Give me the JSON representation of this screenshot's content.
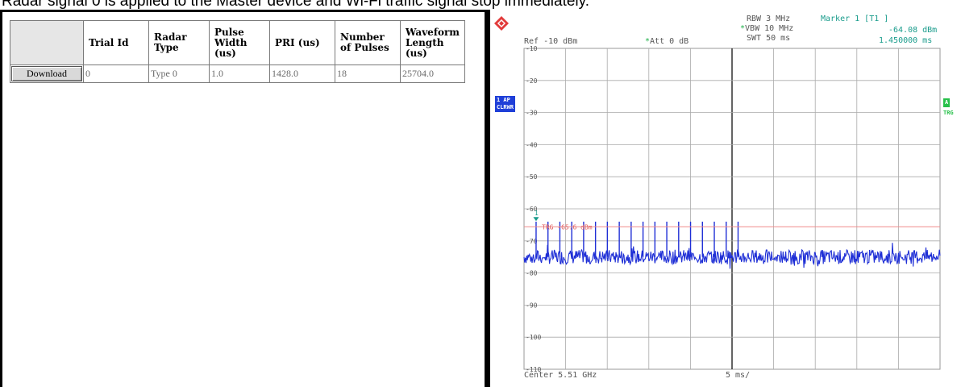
{
  "caption": "Radar signal 0 is applied to the Master device and Wi-Fi traffic signal stop immediately.",
  "table": {
    "headers": [
      "",
      "Trial Id",
      "Radar\nType",
      "Pulse\nWidth\n(us)",
      "PRI (us)",
      "Number\nof Pulses",
      "Waveform\nLength\n(us)"
    ],
    "rows": [
      {
        "button": "Download",
        "trial_id": "0",
        "radar_type": "Type 0",
        "pulse_width": "1.0",
        "pri": "1428.0",
        "num_pulses": "18",
        "waveform_length": "25704.0"
      }
    ]
  },
  "analyzer": {
    "ref": "Ref -10 dBm",
    "att": "Att  0 dB",
    "rbw": "RBW 3 MHz",
    "vbw": "VBW 10 MHz",
    "swt": "SWT 50 ms",
    "marker_label": "Marker 1 [T1 ]",
    "marker_level": "-64.08 dBm",
    "marker_time": "1.450000 ms",
    "trace_badge_1": "1 AP",
    "trace_badge_2": "CLRWR",
    "right_badge": "A",
    "right_tag": "TRG",
    "trigger_label": "TRG -65.6 dBm",
    "marker_flag": "1",
    "center": "Center 5.51 GHz",
    "span": "5 ms/",
    "y_ticks": [
      "-10",
      "-20",
      "-30",
      "-40",
      "-50",
      "-60",
      "-70",
      "-80",
      "-90",
      "-100",
      "-110"
    ],
    "colors": {
      "trace": "#1f2fd6",
      "trigger": "#f08a8a",
      "marker": "#1a9c8c",
      "badge": "#1f3fd8"
    }
  },
  "chart_data": {
    "type": "line",
    "title": "",
    "xlabel": "",
    "ylabel": "",
    "x_unit": "ms",
    "xlim": [
      0,
      50
    ],
    "ylim": [
      -110,
      -10
    ],
    "noise_floor_dbm": -75,
    "trigger_level_dbm": -65.6,
    "pulses": {
      "count": 18,
      "level_dbm": -64,
      "start_ms": 1.45,
      "pri_ms": 1.428
    },
    "marker": {
      "time_ms": 1.45,
      "level_dbm": -64.08
    }
  }
}
